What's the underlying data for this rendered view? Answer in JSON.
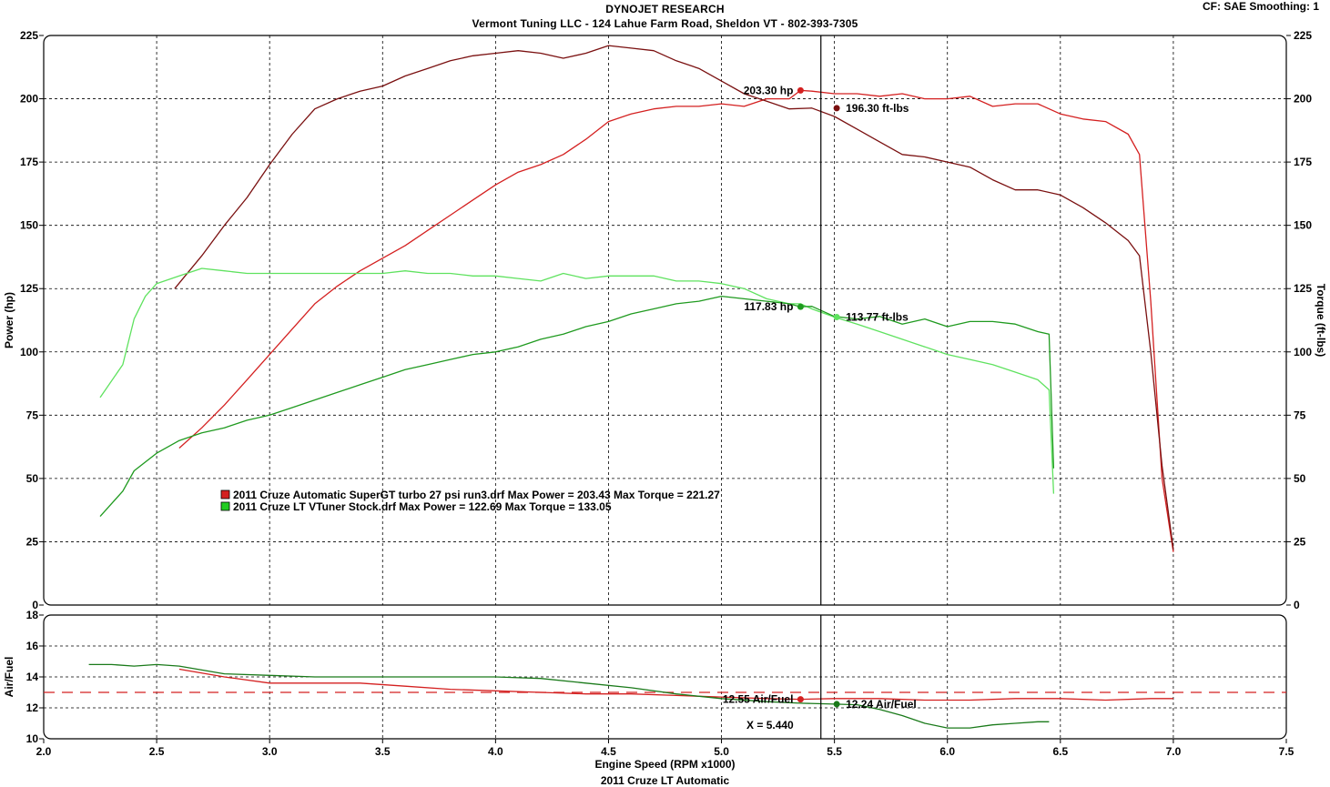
{
  "header": {
    "line1": "DYNOJET RESEARCH",
    "line2": "Vermont Tuning LLC - 124 Lahue Farm Road, Sheldon VT - 802-393-7305",
    "cf_info": "CF: SAE  Smoothing: 1"
  },
  "footer": {
    "title": "2011 Cruze LT Automatic"
  },
  "colors": {
    "red": "#d42020",
    "darkred": "#7a1010",
    "green": "#22aa22",
    "brightgreen": "#5fe25f",
    "darkgreen": "#137a13"
  },
  "chart_data": [
    {
      "type": "line",
      "title": "",
      "xlabel": "Engine Speed (RPM x1000)",
      "ylabel": "Power (hp)",
      "y2label": "Torque (ft-lbs)",
      "xlim": [
        2.0,
        7.5
      ],
      "ylim": [
        0,
        225
      ],
      "y2lim": [
        0,
        225
      ],
      "x_ticks": [
        "2.0",
        "2.5",
        "3.0",
        "3.5",
        "4.0",
        "4.5",
        "5.0",
        "5.5",
        "6.0",
        "6.5",
        "7.0",
        "7.5"
      ],
      "y_ticks": [
        "0",
        "25",
        "50",
        "75",
        "100",
        "125",
        "150",
        "175",
        "200",
        "225"
      ],
      "grid": true,
      "cursor_x": 5.44,
      "legend": [
        {
          "color": "#d42020",
          "text": "2011 Cruze Automatic SuperGT turbo 27 psi run3.drf Max Power = 203.43     Max Torque = 221.27"
        },
        {
          "color": "#22cc22",
          "text": "2011 Cruze LT VTuner Stock.drf Max Power = 122.69     Max Torque = 133.05"
        }
      ],
      "series": [
        {
          "color": "#d42020",
          "x": [
            2.6,
            2.7,
            2.8,
            2.9,
            3.0,
            3.1,
            3.2,
            3.3,
            3.4,
            3.5,
            3.6,
            3.7,
            3.8,
            3.9,
            4.0,
            4.1,
            4.2,
            4.3,
            4.4,
            4.5,
            4.6,
            4.7,
            4.8,
            4.9,
            5.0,
            5.1,
            5.2,
            5.3,
            5.35,
            5.4,
            5.5,
            5.6,
            5.7,
            5.8,
            5.9,
            6.0,
            6.1,
            6.2,
            6.3,
            6.4,
            6.5,
            6.6,
            6.7,
            6.8,
            6.85,
            6.9,
            6.95,
            7.0
          ],
          "y": [
            62,
            70,
            79,
            89,
            99,
            109,
            119,
            126,
            132,
            137,
            142,
            148,
            154,
            160,
            166,
            171,
            174,
            178,
            184,
            191,
            194,
            196,
            197,
            197,
            198,
            197,
            200,
            200,
            203.3,
            203,
            202,
            202,
            201,
            202,
            200,
            200,
            201,
            197,
            198,
            198,
            194,
            192,
            191,
            186,
            178,
            120,
            50,
            21
          ]
        },
        {
          "color": "#7a1010",
          "x": [
            2.58,
            2.7,
            2.8,
            2.9,
            3.0,
            3.1,
            3.2,
            3.3,
            3.4,
            3.5,
            3.6,
            3.7,
            3.8,
            3.9,
            4.0,
            4.1,
            4.2,
            4.3,
            4.4,
            4.5,
            4.6,
            4.7,
            4.8,
            4.9,
            5.0,
            5.1,
            5.2,
            5.3,
            5.4,
            5.5,
            5.6,
            5.7,
            5.8,
            5.9,
            6.0,
            6.1,
            6.2,
            6.3,
            6.4,
            6.5,
            6.6,
            6.7,
            6.8,
            6.85,
            6.9,
            6.95,
            7.0
          ],
          "y": [
            125,
            138,
            150,
            161,
            174,
            186,
            196,
            200,
            203,
            205,
            209,
            212,
            215,
            217,
            218,
            219,
            218,
            216,
            218,
            221,
            220,
            219,
            215,
            212,
            207,
            202,
            199,
            196,
            196.3,
            193,
            188,
            183,
            178,
            177,
            175,
            173,
            168,
            164,
            164,
            162,
            157,
            151,
            144,
            138,
            100,
            55,
            22
          ]
        },
        {
          "color": "#5fe25f",
          "x": [
            2.25,
            2.35,
            2.4,
            2.45,
            2.5,
            2.6,
            2.7,
            2.8,
            2.9,
            3.0,
            3.1,
            3.2,
            3.3,
            3.4,
            3.5,
            3.6,
            3.7,
            3.8,
            3.9,
            4.0,
            4.1,
            4.2,
            4.3,
            4.4,
            4.5,
            4.6,
            4.7,
            4.8,
            4.9,
            5.0,
            5.1,
            5.2,
            5.3,
            5.35,
            5.4,
            5.5,
            5.6,
            5.7,
            5.8,
            5.9,
            6.0,
            6.1,
            6.2,
            6.3,
            6.4,
            6.45,
            6.47
          ],
          "y": [
            82,
            95,
            113,
            122,
            127,
            130,
            133,
            132,
            131,
            131,
            131,
            131,
            131,
            131,
            131,
            132,
            131,
            131,
            130,
            130,
            129,
            128,
            131,
            129,
            130,
            130,
            130,
            128,
            128,
            127,
            125,
            121,
            119,
            119,
            117,
            113.77,
            111,
            108,
            105,
            102,
            99,
            97,
            95,
            92,
            89,
            85,
            44
          ]
        },
        {
          "color": "#1f9a1f",
          "x": [
            2.25,
            2.35,
            2.4,
            2.5,
            2.6,
            2.7,
            2.8,
            2.9,
            3.0,
            3.1,
            3.2,
            3.3,
            3.4,
            3.5,
            3.6,
            3.7,
            3.8,
            3.9,
            4.0,
            4.1,
            4.2,
            4.3,
            4.4,
            4.5,
            4.6,
            4.7,
            4.8,
            4.9,
            5.0,
            5.1,
            5.2,
            5.3,
            5.35,
            5.4,
            5.5,
            5.6,
            5.7,
            5.8,
            5.9,
            6.0,
            6.1,
            6.2,
            6.3,
            6.4,
            6.45,
            6.47
          ],
          "y": [
            35,
            45,
            53,
            60,
            65,
            68,
            70,
            73,
            75,
            78,
            81,
            84,
            87,
            90,
            93,
            95,
            97,
            99,
            100,
            102,
            105,
            107,
            110,
            112,
            115,
            117,
            119,
            120,
            122,
            121,
            120,
            119,
            117.83,
            118,
            114,
            113,
            114,
            111,
            113,
            110,
            112,
            112,
            111,
            108,
            107,
            54
          ]
        }
      ],
      "annotations": [
        {
          "text": "203.30 hp",
          "x": 5.35,
          "y": 203.3,
          "color": "#d42020"
        },
        {
          "text": "196.30 ft-lbs",
          "x": 5.51,
          "y": 196.3,
          "color": "#7a1010"
        },
        {
          "text": "117.83 hp",
          "x": 5.35,
          "y": 117.83,
          "color": "#1f9a1f"
        },
        {
          "text": "113.77 ft-lbs",
          "x": 5.51,
          "y": 113.77,
          "color": "#5fe25f"
        }
      ]
    },
    {
      "type": "line",
      "title": "",
      "xlabel": "Engine Speed (RPM x1000)",
      "ylabel": "Air/Fuel",
      "xlim": [
        2.0,
        7.5
      ],
      "ylim": [
        10,
        18
      ],
      "y_ticks": [
        "10",
        "12",
        "14",
        "16",
        "18"
      ],
      "reference_line": 13.0,
      "cursor_x": 5.44,
      "cursor_label": "X = 5.440",
      "series": [
        {
          "color": "#d42020",
          "x": [
            2.6,
            2.8,
            3.0,
            3.2,
            3.4,
            3.6,
            3.8,
            4.0,
            4.2,
            4.4,
            4.6,
            4.8,
            5.0,
            5.2,
            5.35,
            5.5,
            5.7,
            5.9,
            6.1,
            6.3,
            6.5,
            6.7,
            6.9,
            7.0
          ],
          "y": [
            14.5,
            14.0,
            13.6,
            13.6,
            13.6,
            13.4,
            13.2,
            13.1,
            13.0,
            12.9,
            12.9,
            12.8,
            12.7,
            12.6,
            12.55,
            12.6,
            12.6,
            12.5,
            12.5,
            12.6,
            12.6,
            12.5,
            12.6,
            12.6
          ]
        },
        {
          "color": "#1a7a1a",
          "x": [
            2.2,
            2.3,
            2.4,
            2.5,
            2.6,
            2.8,
            3.0,
            3.2,
            3.4,
            3.6,
            3.8,
            4.0,
            4.2,
            4.4,
            4.6,
            4.8,
            5.0,
            5.2,
            5.35,
            5.5,
            5.6,
            5.7,
            5.8,
            5.9,
            6.0,
            6.1,
            6.2,
            6.3,
            6.4,
            6.45
          ],
          "y": [
            14.8,
            14.8,
            14.7,
            14.8,
            14.7,
            14.2,
            14.1,
            14.0,
            14.0,
            14.0,
            14.0,
            14.0,
            13.9,
            13.6,
            13.3,
            12.9,
            12.6,
            12.4,
            12.3,
            12.24,
            12.2,
            11.9,
            11.5,
            11.0,
            10.7,
            10.7,
            10.9,
            11.0,
            11.1,
            11.1
          ]
        }
      ],
      "annotations": [
        {
          "text": "12.55 Air/Fuel",
          "x": 5.35,
          "y": 12.55,
          "color": "#d42020"
        },
        {
          "text": "12.24 Air/Fuel",
          "x": 5.51,
          "y": 12.24,
          "color": "#1a7a1a"
        }
      ]
    }
  ]
}
